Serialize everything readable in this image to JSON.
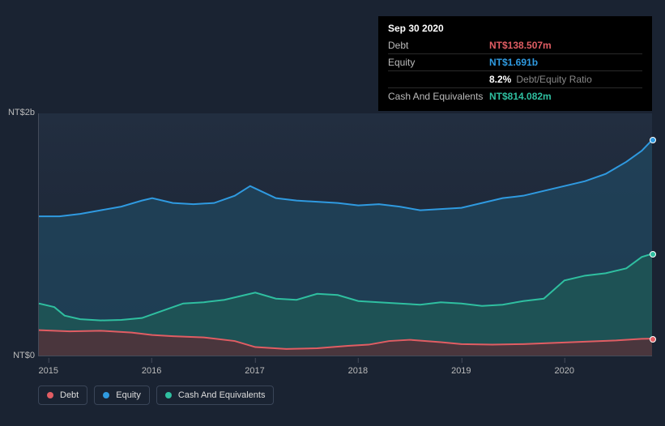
{
  "tooltip": {
    "date": "Sep 30 2020",
    "rows": [
      {
        "label": "Debt",
        "value": "NT$138.507m",
        "color": "#e15d63"
      },
      {
        "label": "Equity",
        "value": "NT$1.691b",
        "color": "#2f9ae0"
      },
      {
        "label": "",
        "value": "8.2%",
        "ratio_label": "Debt/Equity Ratio",
        "color": "#ffffff"
      },
      {
        "label": "Cash And Equivalents",
        "value": "NT$814.082m",
        "color": "#2fbfa0"
      }
    ]
  },
  "chart": {
    "type": "area",
    "background_gradient": [
      "#222e40",
      "#1a2332"
    ],
    "axis_color": "#444b5a",
    "y": {
      "min": 0,
      "max": 2000,
      "ticks": [
        {
          "v": 0,
          "label": "NT$0"
        },
        {
          "v": 2000,
          "label": "NT$2b"
        }
      ],
      "label_color": "#bbbbbb",
      "label_fontsize": 11
    },
    "x": {
      "min": 2014.9,
      "max": 2020.85,
      "ticks": [
        {
          "v": 2015,
          "label": "2015"
        },
        {
          "v": 2016,
          "label": "2016"
        },
        {
          "v": 2017,
          "label": "2017"
        },
        {
          "v": 2018,
          "label": "2018"
        },
        {
          "v": 2019,
          "label": "2019"
        },
        {
          "v": 2020,
          "label": "2020"
        }
      ],
      "label_color": "#bbbbbb",
      "label_fontsize": 11
    },
    "series": [
      {
        "name": "Equity",
        "stroke": "#2f9ae0",
        "fill": "#20475f",
        "fill_opacity": 0.75,
        "stroke_width": 2,
        "end_dot": true,
        "points": [
          [
            2014.9,
            1150
          ],
          [
            2015.1,
            1150
          ],
          [
            2015.3,
            1170
          ],
          [
            2015.5,
            1200
          ],
          [
            2015.7,
            1230
          ],
          [
            2015.9,
            1280
          ],
          [
            2016.0,
            1300
          ],
          [
            2016.2,
            1260
          ],
          [
            2016.4,
            1250
          ],
          [
            2016.6,
            1260
          ],
          [
            2016.8,
            1320
          ],
          [
            2016.95,
            1400
          ],
          [
            2017.0,
            1380
          ],
          [
            2017.2,
            1300
          ],
          [
            2017.4,
            1280
          ],
          [
            2017.6,
            1270
          ],
          [
            2017.8,
            1260
          ],
          [
            2018.0,
            1240
          ],
          [
            2018.2,
            1250
          ],
          [
            2018.4,
            1230
          ],
          [
            2018.6,
            1200
          ],
          [
            2018.8,
            1210
          ],
          [
            2019.0,
            1220
          ],
          [
            2019.2,
            1260
          ],
          [
            2019.4,
            1300
          ],
          [
            2019.6,
            1320
          ],
          [
            2019.8,
            1360
          ],
          [
            2020.0,
            1400
          ],
          [
            2020.2,
            1440
          ],
          [
            2020.4,
            1500
          ],
          [
            2020.6,
            1600
          ],
          [
            2020.75,
            1691
          ],
          [
            2020.85,
            1780
          ]
        ]
      },
      {
        "name": "Cash And Equivalents",
        "stroke": "#2fbfa0",
        "fill": "#1f5a55",
        "fill_opacity": 0.75,
        "stroke_width": 2,
        "end_dot": true,
        "points": [
          [
            2014.9,
            430
          ],
          [
            2015.05,
            400
          ],
          [
            2015.15,
            330
          ],
          [
            2015.3,
            300
          ],
          [
            2015.5,
            290
          ],
          [
            2015.7,
            295
          ],
          [
            2015.9,
            310
          ],
          [
            2016.1,
            370
          ],
          [
            2016.3,
            430
          ],
          [
            2016.5,
            440
          ],
          [
            2016.7,
            460
          ],
          [
            2016.9,
            500
          ],
          [
            2017.0,
            520
          ],
          [
            2017.2,
            470
          ],
          [
            2017.4,
            460
          ],
          [
            2017.6,
            510
          ],
          [
            2017.8,
            500
          ],
          [
            2018.0,
            450
          ],
          [
            2018.2,
            440
          ],
          [
            2018.4,
            430
          ],
          [
            2018.6,
            420
          ],
          [
            2018.8,
            440
          ],
          [
            2019.0,
            430
          ],
          [
            2019.2,
            410
          ],
          [
            2019.4,
            420
          ],
          [
            2019.6,
            450
          ],
          [
            2019.8,
            470
          ],
          [
            2020.0,
            620
          ],
          [
            2020.2,
            660
          ],
          [
            2020.4,
            680
          ],
          [
            2020.6,
            720
          ],
          [
            2020.75,
            814
          ],
          [
            2020.85,
            840
          ]
        ]
      },
      {
        "name": "Debt",
        "stroke": "#e15d63",
        "fill": "#5a2d35",
        "fill_opacity": 0.75,
        "stroke_width": 2,
        "end_dot": true,
        "points": [
          [
            2014.9,
            210
          ],
          [
            2015.2,
            200
          ],
          [
            2015.5,
            205
          ],
          [
            2015.8,
            190
          ],
          [
            2016.0,
            170
          ],
          [
            2016.2,
            160
          ],
          [
            2016.5,
            150
          ],
          [
            2016.8,
            120
          ],
          [
            2017.0,
            70
          ],
          [
            2017.3,
            55
          ],
          [
            2017.6,
            60
          ],
          [
            2017.9,
            80
          ],
          [
            2018.1,
            90
          ],
          [
            2018.3,
            120
          ],
          [
            2018.5,
            130
          ],
          [
            2018.8,
            110
          ],
          [
            2019.0,
            95
          ],
          [
            2019.3,
            90
          ],
          [
            2019.6,
            95
          ],
          [
            2019.9,
            105
          ],
          [
            2020.2,
            115
          ],
          [
            2020.5,
            125
          ],
          [
            2020.75,
            138
          ],
          [
            2020.85,
            140
          ]
        ]
      }
    ]
  },
  "legend": {
    "items": [
      {
        "label": "Debt",
        "color": "#e15d63"
      },
      {
        "label": "Equity",
        "color": "#2f9ae0"
      },
      {
        "label": "Cash And Equivalents",
        "color": "#2fbfa0"
      }
    ],
    "border_color": "#3a4558",
    "text_color": "#dddddd",
    "fontsize": 11
  }
}
